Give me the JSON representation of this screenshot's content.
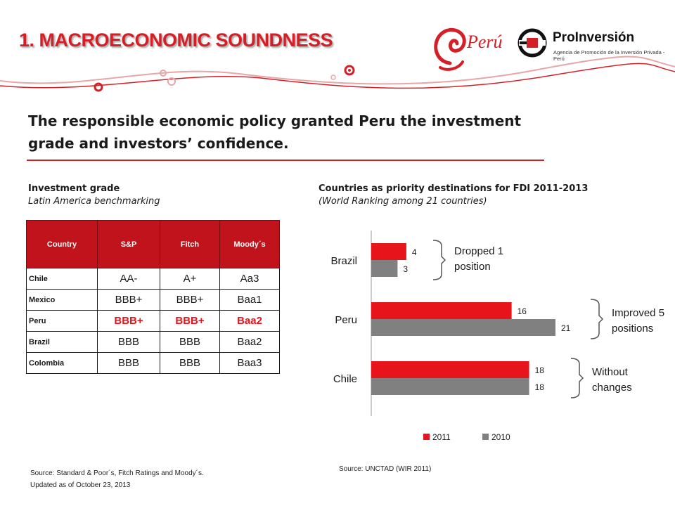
{
  "header": {
    "title": "1. MACROECONOMIC SOUNDNESS",
    "logo_peru_text": "Perú",
    "logo_proinversion_name": "ProInversión",
    "logo_proinversion_sub": "Agencia de Promoción de la Inversión Privada - Perú"
  },
  "headline": {
    "line1": "The responsible economic policy granted Peru the investment",
    "line2": "grade and investors’ confidence."
  },
  "left_section": {
    "title": "Investment grade",
    "subtitle": "Latin America benchmarking",
    "table": {
      "headers": [
        "Country",
        "S&P",
        "Fitch",
        "Moody´s"
      ],
      "rows": [
        {
          "country": "Chile",
          "sp": "AA-",
          "fitch": "A+",
          "moodys": "Aa3",
          "highlight": false
        },
        {
          "country": "Mexico",
          "sp": "BBB+",
          "fitch": "BBB+",
          "moodys": "Baa1",
          "highlight": false
        },
        {
          "country": "Peru",
          "sp": "BBB+",
          "fitch": "BBB+",
          "moodys": "Baa2",
          "highlight": true
        },
        {
          "country": "Brazil",
          "sp": "BBB",
          "fitch": "BBB",
          "moodys": "Baa2",
          "highlight": false
        },
        {
          "country": "Colombia",
          "sp": "BBB",
          "fitch": "BBB",
          "moodys": "Baa3",
          "highlight": false
        }
      ]
    },
    "source_line1": "Source:  Standard & Poor´s, Fitch Ratings and Moody´s.",
    "source_line2": "Updated as of  October 23, 2013"
  },
  "right_section": {
    "title": "Countries as priority destinations for FDI 2011-2013",
    "subtitle": "(World Ranking among 21 countries)",
    "source": "Source:  UNCTAD (WIR 2011)"
  },
  "chart_data": {
    "type": "bar",
    "orientation": "horizontal",
    "categories": [
      "Brazil",
      "Peru",
      "Chile"
    ],
    "series": [
      {
        "name": "2011",
        "values": [
          4,
          16,
          18
        ],
        "color": "#e8141c"
      },
      {
        "name": "2010",
        "values": [
          3,
          21,
          18
        ],
        "color": "#808080"
      }
    ],
    "xlim": [
      0,
      21
    ],
    "legend_position": "bottom",
    "grid": false,
    "annotations": [
      {
        "category": "Brazil",
        "lines": [
          "Dropped 1",
          "position"
        ]
      },
      {
        "category": "Peru",
        "lines": [
          "Improved 5",
          "positions"
        ]
      },
      {
        "category": "Chile",
        "lines": [
          "Without",
          "changes"
        ]
      }
    ]
  }
}
